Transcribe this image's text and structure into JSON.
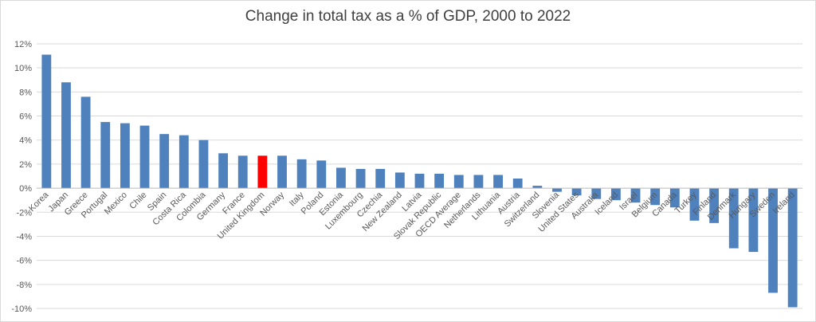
{
  "chart_data": {
    "type": "bar",
    "title": "Change in total tax as a % of GDP, 2000 to 2022",
    "xlabel": "",
    "ylabel": "",
    "ylim": [
      -10,
      12
    ],
    "yticks": [
      12,
      10,
      8,
      6,
      4,
      2,
      0,
      -2,
      -4,
      -6,
      -8,
      -10
    ],
    "ytick_labels": [
      "12%",
      "10%",
      "8%",
      "6%",
      "4%",
      "2%",
      "0%",
      "-2%",
      "-4%",
      "-6%",
      "-8%",
      "-10%"
    ],
    "grid": "horizontal",
    "bar_color": "#4f81bd",
    "highlight_color": "#ff0000",
    "highlight_category": "United Kingdom",
    "categories": [
      "Korea",
      "Japan",
      "Greece",
      "Portugal",
      "Mexico",
      "Chile",
      "Spain",
      "Costa Rica",
      "Colombia",
      "Germany",
      "France",
      "United Kingdom",
      "Norway",
      "Italy",
      "Poland",
      "Estonia",
      "Luxembourg",
      "Czechia",
      "New Zealand",
      "Latvia",
      "Slovak Republic",
      "OECD Average",
      "Netherlands",
      "Lithuania",
      "Austria",
      "Switzerland",
      "Slovenia",
      "United States",
      "Australia",
      "Iceland",
      "Israel",
      "Belgium",
      "Canada",
      "Turkey",
      "Finland",
      "Denmark",
      "Hungary",
      "Sweden",
      "Ireland"
    ],
    "values": [
      11.1,
      8.8,
      7.6,
      5.5,
      5.4,
      5.2,
      4.5,
      4.4,
      4.0,
      2.9,
      2.7,
      2.7,
      2.7,
      2.4,
      2.3,
      1.7,
      1.6,
      1.6,
      1.3,
      1.2,
      1.2,
      1.1,
      1.1,
      1.1,
      0.8,
      0.2,
      -0.3,
      -0.6,
      -0.9,
      -1.0,
      -1.2,
      -1.4,
      -1.6,
      -2.7,
      -2.9,
      -5.0,
      -5.3,
      -8.7,
      -9.9
    ]
  }
}
